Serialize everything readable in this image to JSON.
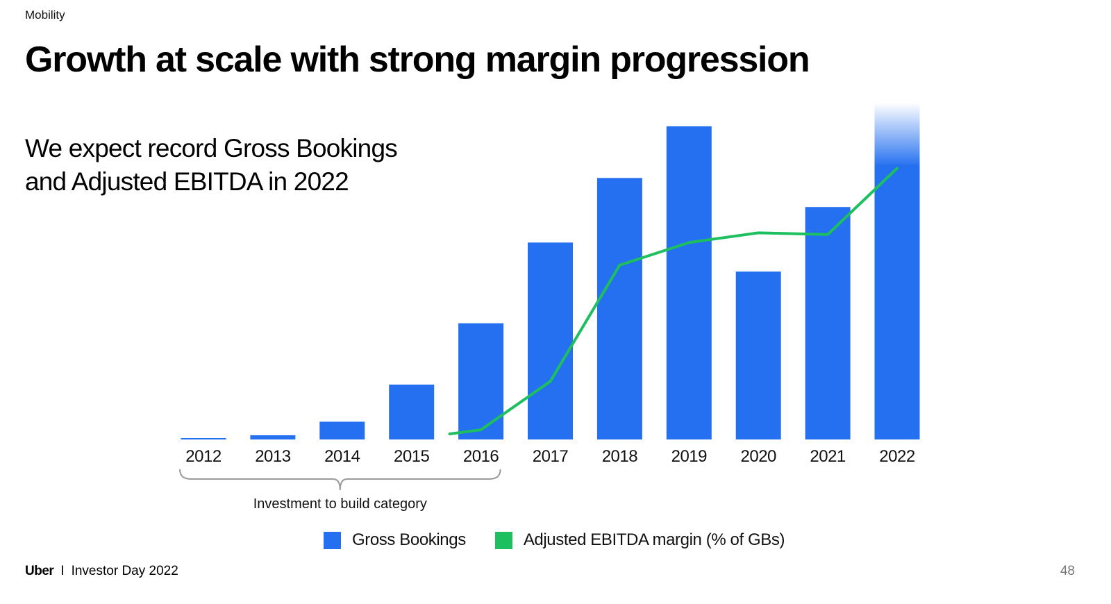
{
  "header": {
    "section": "Mobility",
    "title": "Growth at scale with strong margin progression"
  },
  "subtitle": {
    "line1": "We expect record Gross Bookings",
    "line2": "and Adjusted EBITDA in 2022"
  },
  "chart_data": {
    "type": "bar",
    "categories": [
      "2012",
      "2013",
      "2014",
      "2015",
      "2016",
      "2017",
      "2018",
      "2019",
      "2020",
      "2021",
      "2022"
    ],
    "series": [
      {
        "name": "Gross Bookings",
        "kind": "bar",
        "color": "#2470F0",
        "values": [
          0.3,
          1.3,
          5.5,
          17,
          36,
          61,
          81,
          97,
          52,
          72,
          100
        ]
      },
      {
        "name": "Adjusted EBITDA margin (% of GBs)",
        "kind": "line",
        "color": "#1DBF5E",
        "values": [
          null,
          null,
          null,
          null,
          3,
          18,
          54,
          61,
          64,
          63.5,
          84
        ]
      }
    ],
    "ylim": [
      0,
      100
    ],
    "bar_fade_on": "2022",
    "bracket": {
      "from": "2012",
      "to": "2016",
      "label": "Investment to build category"
    },
    "legend_position": "bottom",
    "grid": false
  },
  "footer": {
    "brand": "Uber",
    "separator": "I",
    "event": "Investor Day 2022",
    "page": "48"
  }
}
